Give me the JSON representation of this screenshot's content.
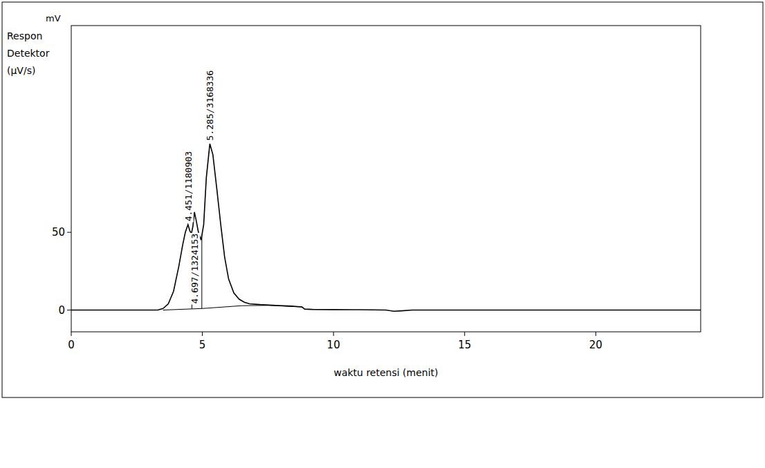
{
  "chart_data": {
    "type": "line",
    "y_unit": "mV",
    "y_label": "Respon Detektor (µV/s)",
    "x_label": "waktu retensi (menit)",
    "xlim": [
      0,
      24
    ],
    "xticks": [
      0,
      5,
      10,
      15,
      20
    ],
    "ylim": [
      -14,
      183
    ],
    "yticks": [
      0,
      50
    ],
    "grid": false,
    "series": [
      {
        "color": "#000000",
        "line_style": "solid",
        "x": [
          0,
          3.3,
          3.5,
          3.7,
          3.9,
          4.1,
          4.25,
          4.35,
          4.451,
          4.52,
          4.58,
          4.64,
          4.697,
          4.76,
          4.85,
          4.95,
          5.05,
          5.15,
          5.285,
          5.4,
          5.55,
          5.7,
          5.85,
          6.0,
          6.2,
          6.4,
          6.6,
          6.8,
          7.2,
          7.8,
          8.4,
          8.8,
          8.9,
          9.2,
          10,
          11,
          12,
          12.3,
          12.6,
          13,
          15,
          17.5,
          20,
          22,
          24
        ],
        "values": [
          0,
          0,
          1,
          4,
          12,
          28,
          42,
          50,
          55,
          51,
          49,
          54,
          63,
          58,
          50,
          45,
          55,
          85,
          107,
          100,
          78,
          55,
          34,
          20,
          11,
          7,
          5,
          4,
          3.5,
          3,
          2.5,
          2,
          0.6,
          0.4,
          0.3,
          0.2,
          0,
          -0.8,
          -0.5,
          0,
          0,
          0,
          0,
          0,
          0
        ]
      },
      {
        "color": "#000000",
        "line_style": "solid",
        "x": [
          3.5,
          5.0,
          6.5,
          7.5,
          8.8
        ],
        "values": [
          0,
          1,
          2.8,
          3,
          2
        ]
      }
    ],
    "drop_lines": [
      4.6,
      4.98
    ],
    "annotations": [
      {
        "x": 4.451,
        "y": 57,
        "text": "4.451/1180903"
      },
      {
        "x": 4.697,
        "y": 4,
        "text": "4.697/1324153"
      },
      {
        "x": 5.285,
        "y": 109,
        "text": "5.285/3168336"
      }
    ]
  }
}
